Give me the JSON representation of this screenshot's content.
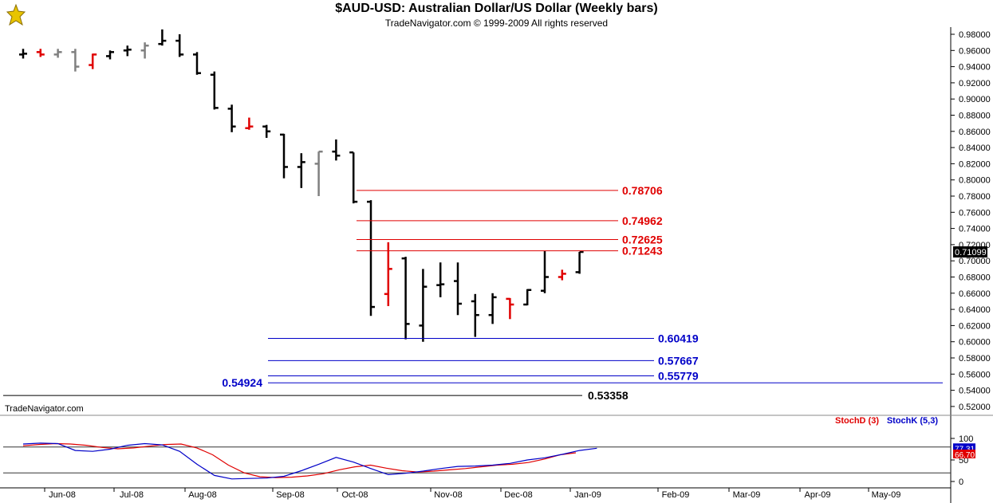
{
  "header": {
    "title": "$AUD-USD:  Australian Dollar/US Dollar  (Weekly bars)",
    "subtitle": "TradeNavigator.com © 1999-2009 All rights reserved"
  },
  "watermark": "TradeNavigator.com",
  "colors": {
    "up": "#000000",
    "down": "#e00000",
    "neutral": "#808080",
    "fib_red": "#e00000",
    "fib_blue": "#0000c8",
    "stochD": "#e00000",
    "stochK": "#0000c8"
  },
  "chart_data": [
    {
      "type": "ohlc",
      "title": "$AUD-USD:  Australian Dollar/US Dollar  (Weekly bars)",
      "ylim": [
        0.51,
        0.99
      ],
      "y_ticks": [
        "0.98000",
        "0.96000",
        "0.94000",
        "0.92000",
        "0.90000",
        "0.88000",
        "0.86000",
        "0.84000",
        "0.82000",
        "0.80000",
        "0.78000",
        "0.76000",
        "0.74000",
        "0.72000",
        "0.70000",
        "0.68000",
        "0.66000",
        "0.64000",
        "0.62000",
        "0.60000",
        "0.58000",
        "0.56000",
        "0.54000",
        "0.52000"
      ],
      "x_labels": [
        "Jun-08",
        "Jul-08",
        "Aug-08",
        "Sep-08",
        "Oct-08",
        "Nov-08",
        "Dec-08",
        "Jan-09",
        "Feb-09",
        "Mar-09",
        "Apr-09",
        "May-09"
      ],
      "last_price_label": "0.71099",
      "last_price": 0.711,
      "bars": [
        {
          "o": 0.955,
          "h": 0.962,
          "l": 0.95,
          "c": 0.956,
          "k": "up"
        },
        {
          "o": 0.958,
          "h": 0.962,
          "l": 0.952,
          "c": 0.955,
          "k": "down"
        },
        {
          "o": 0.955,
          "h": 0.962,
          "l": 0.951,
          "c": 0.958,
          "k": "neutral"
        },
        {
          "o": 0.958,
          "h": 0.962,
          "l": 0.934,
          "c": 0.94,
          "k": "neutral"
        },
        {
          "o": 0.942,
          "h": 0.956,
          "l": 0.937,
          "c": 0.955,
          "k": "down"
        },
        {
          "o": 0.953,
          "h": 0.96,
          "l": 0.949,
          "c": 0.958,
          "k": "up"
        },
        {
          "o": 0.96,
          "h": 0.966,
          "l": 0.953,
          "c": 0.961,
          "k": "up"
        },
        {
          "o": 0.96,
          "h": 0.97,
          "l": 0.95,
          "c": 0.966,
          "k": "neutral"
        },
        {
          "o": 0.968,
          "h": 0.986,
          "l": 0.966,
          "c": 0.972,
          "k": "up"
        },
        {
          "o": 0.972,
          "h": 0.98,
          "l": 0.952,
          "c": 0.955,
          "k": "up"
        },
        {
          "o": 0.955,
          "h": 0.958,
          "l": 0.93,
          "c": 0.932,
          "k": "up"
        },
        {
          "o": 0.93,
          "h": 0.934,
          "l": 0.887,
          "c": 0.889,
          "k": "up"
        },
        {
          "o": 0.888,
          "h": 0.893,
          "l": 0.859,
          "c": 0.866,
          "k": "up"
        },
        {
          "o": 0.864,
          "h": 0.877,
          "l": 0.862,
          "c": 0.866,
          "k": "down"
        },
        {
          "o": 0.866,
          "h": 0.868,
          "l": 0.852,
          "c": 0.86,
          "k": "up"
        },
        {
          "o": 0.856,
          "h": 0.857,
          "l": 0.802,
          "c": 0.816,
          "k": "up"
        },
        {
          "o": 0.816,
          "h": 0.833,
          "l": 0.79,
          "c": 0.822,
          "k": "up"
        },
        {
          "o": 0.82,
          "h": 0.835,
          "l": 0.78,
          "c": 0.835,
          "k": "neutral"
        },
        {
          "o": 0.835,
          "h": 0.85,
          "l": 0.824,
          "c": 0.83,
          "k": "up"
        },
        {
          "o": 0.834,
          "h": 0.834,
          "l": 0.771,
          "c": 0.773,
          "k": "up"
        },
        {
          "o": 0.773,
          "h": 0.775,
          "l": 0.632,
          "c": 0.643,
          "k": "up"
        },
        {
          "o": 0.659,
          "h": 0.723,
          "l": 0.644,
          "c": 0.69,
          "k": "down"
        },
        {
          "o": 0.703,
          "h": 0.705,
          "l": 0.603,
          "c": 0.622,
          "k": "up"
        },
        {
          "o": 0.62,
          "h": 0.69,
          "l": 0.6,
          "c": 0.668,
          "k": "up"
        },
        {
          "o": 0.67,
          "h": 0.698,
          "l": 0.655,
          "c": 0.671,
          "k": "up"
        },
        {
          "o": 0.675,
          "h": 0.698,
          "l": 0.633,
          "c": 0.647,
          "k": "up"
        },
        {
          "o": 0.65,
          "h": 0.659,
          "l": 0.606,
          "c": 0.633,
          "k": "up"
        },
        {
          "o": 0.633,
          "h": 0.66,
          "l": 0.622,
          "c": 0.655,
          "k": "up"
        },
        {
          "o": 0.653,
          "h": 0.654,
          "l": 0.628,
          "c": 0.646,
          "k": "down"
        },
        {
          "o": 0.646,
          "h": 0.665,
          "l": 0.645,
          "c": 0.664,
          "k": "up"
        },
        {
          "o": 0.663,
          "h": 0.712,
          "l": 0.66,
          "c": 0.68,
          "k": "up"
        },
        {
          "o": 0.68,
          "h": 0.689,
          "l": 0.676,
          "c": 0.684,
          "k": "down"
        },
        {
          "o": 0.686,
          "h": 0.711,
          "l": 0.684,
          "c": 0.711,
          "k": "up"
        }
      ],
      "fib_levels": [
        {
          "label": "0.78706",
          "value": 0.78706,
          "color": "red"
        },
        {
          "label": "0.74962",
          "value": 0.74962,
          "color": "red"
        },
        {
          "label": "0.72625",
          "value": 0.72625,
          "color": "red"
        },
        {
          "label": "0.71243",
          "value": 0.71243,
          "color": "red"
        },
        {
          "label": "0.60419",
          "value": 0.60419,
          "color": "blue"
        },
        {
          "label": "0.57667",
          "value": 0.57667,
          "color": "blue"
        },
        {
          "label": "0.55779",
          "value": 0.55779,
          "color": "blue"
        },
        {
          "label": "0.54924",
          "value": 0.54924,
          "color": "blue"
        },
        {
          "label": "0.53358",
          "value": 0.53358,
          "color": "black"
        }
      ]
    },
    {
      "type": "line",
      "ylim": [
        -5,
        105
      ],
      "y_ticks": [
        "100",
        "50",
        "0"
      ],
      "legend": [
        "StochD (3)",
        "StochK (5,3)"
      ],
      "readouts": [
        "77.31",
        "66.70"
      ],
      "series": [
        {
          "name": "StochD (3)",
          "values": [
            83,
            86,
            88,
            87,
            84,
            79,
            76,
            78,
            82,
            86,
            87,
            78,
            62,
            38,
            20,
            11,
            9,
            10,
            13,
            18,
            27,
            34,
            38,
            31,
            25,
            22,
            24,
            27,
            30,
            34,
            38,
            40,
            44,
            52,
            62,
            66.7
          ]
        },
        {
          "name": "StochK (5,3)",
          "values": [
            87,
            89,
            88,
            72,
            70,
            75,
            84,
            88,
            85,
            70,
            40,
            14,
            6,
            7,
            8,
            12,
            25,
            40,
            56,
            45,
            30,
            16,
            19,
            24,
            30,
            35,
            36,
            38,
            42,
            50,
            55,
            63,
            72,
            77.31
          ]
        }
      ]
    }
  ]
}
